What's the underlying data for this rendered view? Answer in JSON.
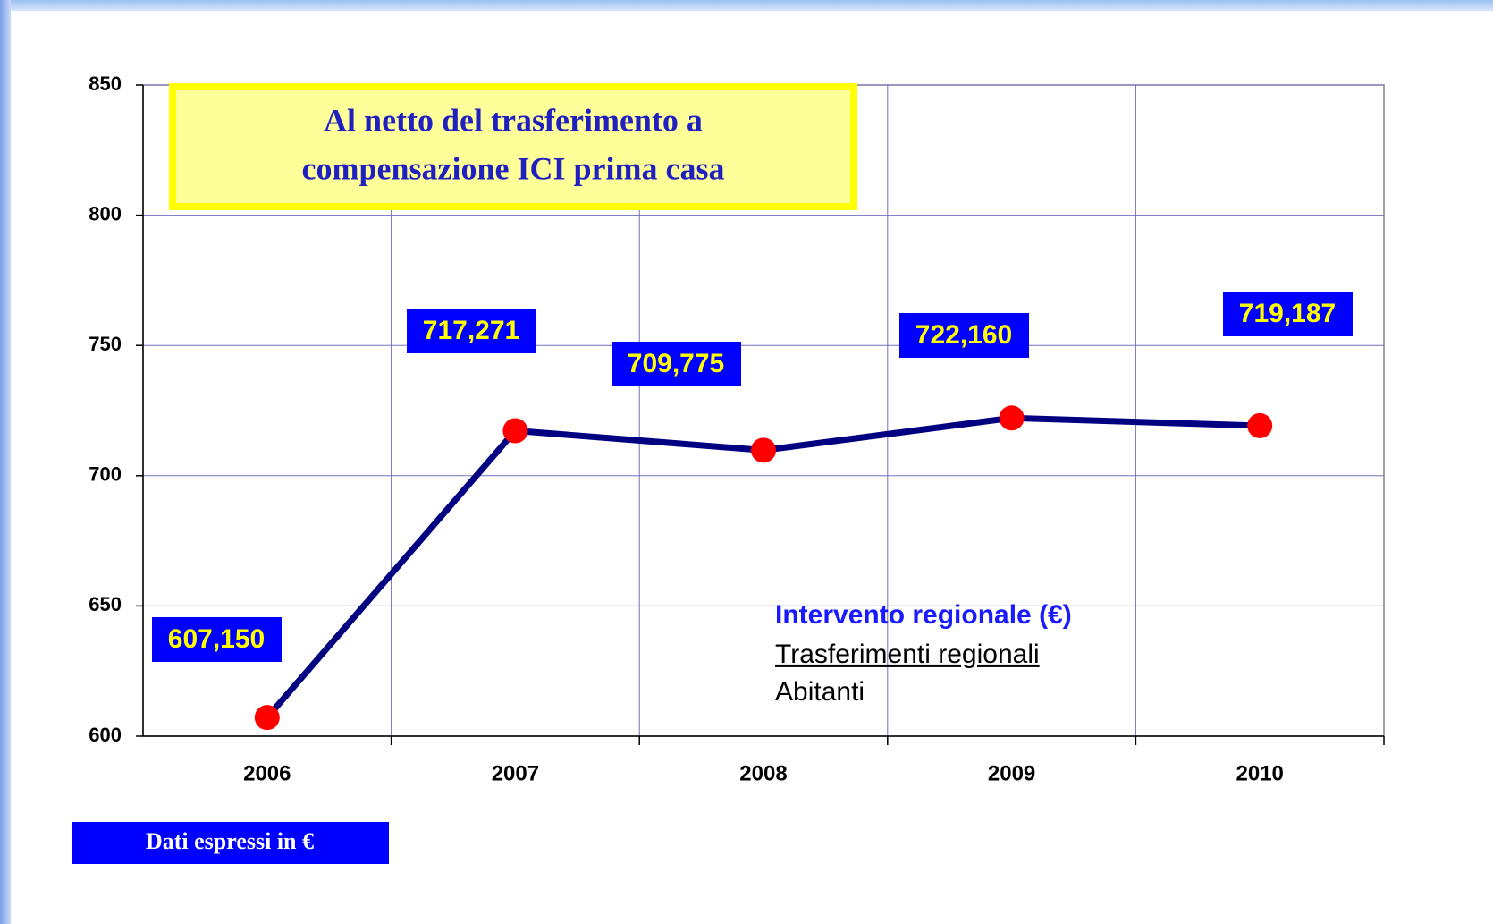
{
  "chart_data": {
    "type": "line",
    "text_box": [
      "Al netto del trasferimento a",
      "compensazione ICI prima casa"
    ],
    "notes": [
      "Intervento regionale  (€)",
      "Trasferimenti regionali",
      "Abitanti"
    ],
    "footnote": "Dati espressi in €",
    "categories": [
      "2006",
      "2007",
      "2008",
      "2009",
      "2010"
    ],
    "series": [
      {
        "color": "#000080",
        "marker_color": "#ff0000",
        "values": [
          607.15,
          717.271,
          709.775,
          722.16,
          719.187
        ],
        "value_labels": [
          "607,150",
          "717,271",
          "709,775",
          "722,160",
          "719,187"
        ]
      }
    ],
    "ylim": [
      600,
      850
    ],
    "yticks": [
      600,
      650,
      700,
      750,
      800,
      850
    ],
    "grid": true
  }
}
